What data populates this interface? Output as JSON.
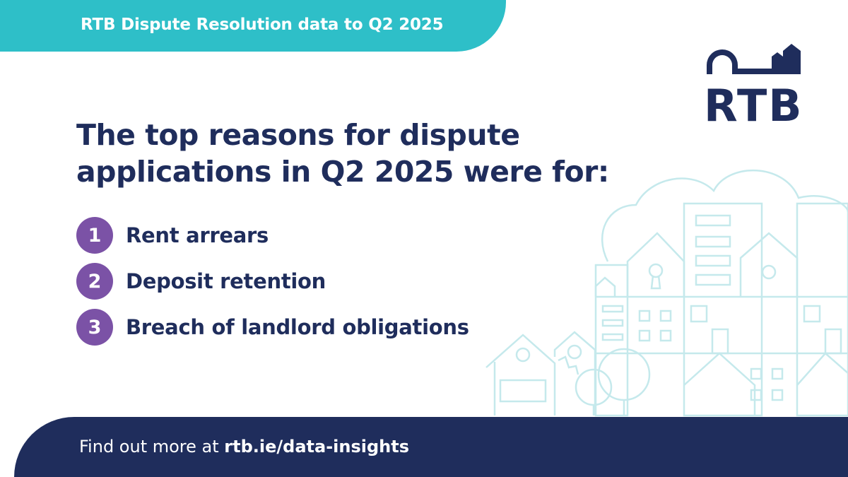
{
  "header": {
    "tab_text": "RTB Dispute Resolution data to Q2 2025",
    "logo_text": "RTB"
  },
  "heading_lines": [
    "The top reasons for dispute",
    "applications in Q2 2025 were for:"
  ],
  "reasons": [
    {
      "rank": 1,
      "label": "Rent arrears"
    },
    {
      "rank": 2,
      "label": "Deposit retention"
    },
    {
      "rank": 3,
      "label": "Breach of landlord obligations"
    }
  ],
  "footer": {
    "prefix": "Find out more at",
    "link": "rtb.ie/data-insights"
  }
}
